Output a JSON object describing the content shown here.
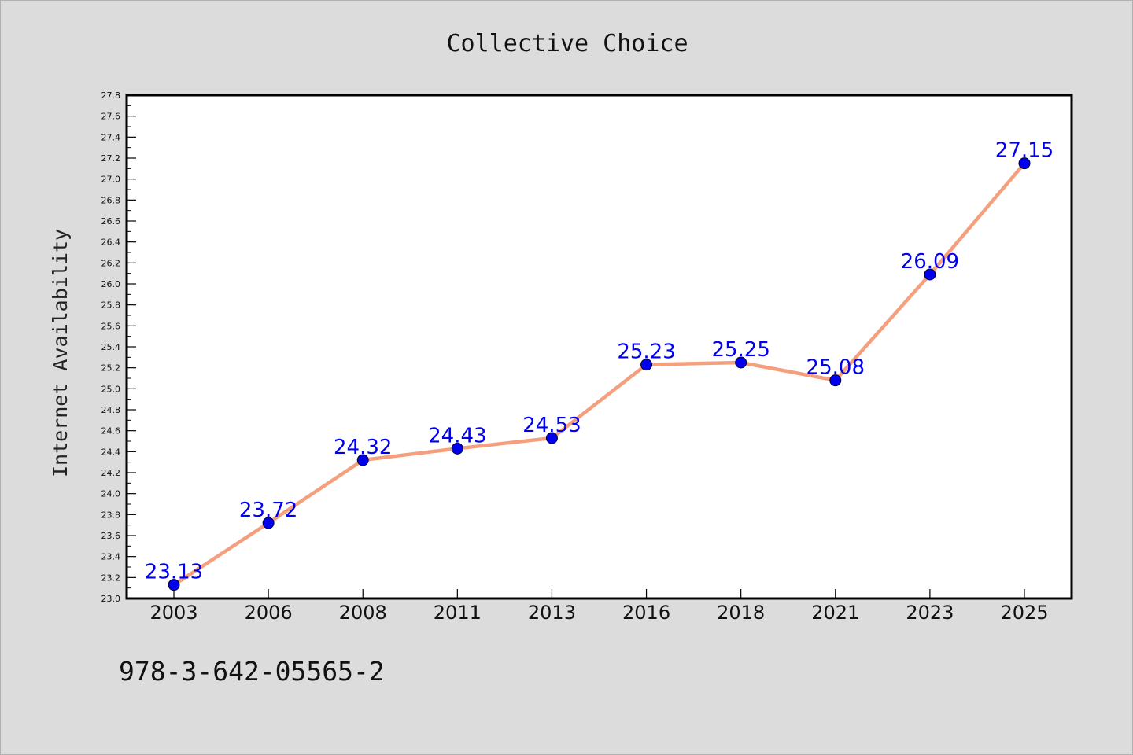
{
  "chart_data": {
    "type": "line",
    "title": "Collective Choice",
    "xlabel": "",
    "ylabel": "Internet Availability",
    "categories": [
      "2003",
      "2006",
      "2008",
      "2011",
      "2013",
      "2016",
      "2018",
      "2021",
      "2023",
      "2025"
    ],
    "series": [
      {
        "values": [
          23.13,
          23.72,
          24.32,
          24.43,
          24.53,
          25.23,
          25.25,
          25.08,
          26.09,
          27.15
        ],
        "labels": [
          "23.13",
          "23.72",
          "24.32",
          "24.43",
          "24.53",
          "25.23",
          "25.25",
          "25.08",
          "26.09",
          "27.15"
        ],
        "line_color": "#f4a07e",
        "marker_color": "#0000ee"
      }
    ],
    "ylim": [
      23.0,
      27.8
    ],
    "yticks": [
      "23.0",
      "23.2",
      "23.4",
      "23.6",
      "23.8",
      "24.0",
      "24.2",
      "24.4",
      "24.6",
      "24.8",
      "25.0",
      "25.2",
      "25.4",
      "25.6",
      "25.8",
      "26.0",
      "26.2",
      "26.4",
      "26.6",
      "26.8",
      "27.0",
      "27.2",
      "27.4",
      "27.6",
      "27.8"
    ],
    "grid": false,
    "data_label_color": "#0000ee"
  },
  "footer": {
    "text": "978-3-642-05565-2"
  }
}
